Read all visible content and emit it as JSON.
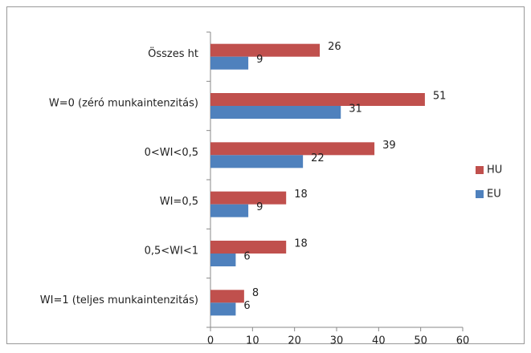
{
  "chart_data": {
    "type": "bar",
    "orientation": "horizontal",
    "categories": [
      "Összes ht",
      "W=0 (zéró munkaintenzitás)",
      "0<WI<0,5",
      "WI=0,5",
      "0,5<WI<1",
      "WI=1 (teljes munkaintenzitás)"
    ],
    "series": [
      {
        "name": "HU",
        "color": "#c0504d",
        "values": [
          26,
          51,
          39,
          18,
          18,
          8
        ]
      },
      {
        "name": "EU",
        "color": "#4f81bd",
        "values": [
          9,
          31,
          22,
          9,
          6,
          6
        ]
      }
    ],
    "xlim": [
      0,
      60
    ],
    "xticks": [
      0,
      10,
      20,
      30,
      40,
      50,
      60
    ],
    "grid": false,
    "legend": "right"
  }
}
